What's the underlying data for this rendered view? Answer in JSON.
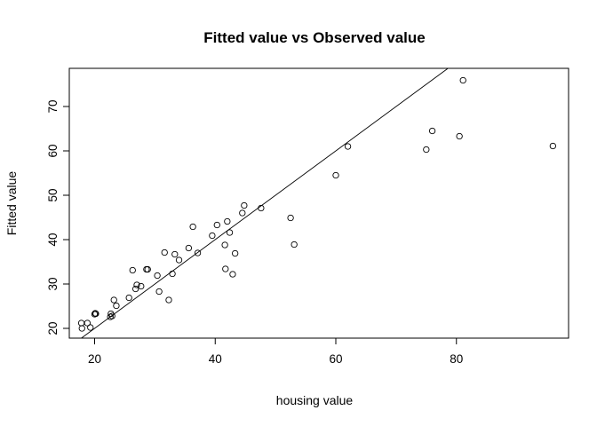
{
  "chart_data": {
    "type": "scatter",
    "title": "Fitted value vs Observed value",
    "xlabel": "housing value",
    "ylabel": "Fitted value",
    "xlim": [
      15.8,
      98.6
    ],
    "ylim": [
      17.8,
      78.6
    ],
    "xticks": [
      20,
      40,
      60,
      80
    ],
    "yticks": [
      20,
      30,
      40,
      50,
      60,
      70
    ],
    "grid": false,
    "reference_line": {
      "type": "abline",
      "intercept": 0,
      "slope": 1
    },
    "points": [
      {
        "x": 17.8,
        "y": 21.2
      },
      {
        "x": 17.9,
        "y": 20.0
      },
      {
        "x": 18.8,
        "y": 21.2
      },
      {
        "x": 19.3,
        "y": 20.2
      },
      {
        "x": 20.0,
        "y": 23.2
      },
      {
        "x": 20.1,
        "y": 23.4
      },
      {
        "x": 20.2,
        "y": 23.3
      },
      {
        "x": 22.6,
        "y": 22.6
      },
      {
        "x": 22.7,
        "y": 23.3
      },
      {
        "x": 22.9,
        "y": 22.8
      },
      {
        "x": 23.2,
        "y": 26.4
      },
      {
        "x": 23.6,
        "y": 25.1
      },
      {
        "x": 25.7,
        "y": 26.9
      },
      {
        "x": 26.3,
        "y": 33.1
      },
      {
        "x": 26.8,
        "y": 28.9
      },
      {
        "x": 27.0,
        "y": 29.8
      },
      {
        "x": 27.7,
        "y": 29.5
      },
      {
        "x": 28.6,
        "y": 33.3
      },
      {
        "x": 28.8,
        "y": 33.3
      },
      {
        "x": 30.4,
        "y": 31.9
      },
      {
        "x": 30.7,
        "y": 28.3
      },
      {
        "x": 31.6,
        "y": 37.1
      },
      {
        "x": 32.3,
        "y": 26.4
      },
      {
        "x": 32.9,
        "y": 32.3
      },
      {
        "x": 33.3,
        "y": 36.7
      },
      {
        "x": 34.0,
        "y": 35.4
      },
      {
        "x": 35.6,
        "y": 38.1
      },
      {
        "x": 36.3,
        "y": 42.9
      },
      {
        "x": 37.1,
        "y": 37.0
      },
      {
        "x": 39.5,
        "y": 40.9
      },
      {
        "x": 40.3,
        "y": 43.3
      },
      {
        "x": 41.6,
        "y": 38.8
      },
      {
        "x": 41.7,
        "y": 33.4
      },
      {
        "x": 42.0,
        "y": 44.1
      },
      {
        "x": 42.4,
        "y": 41.6
      },
      {
        "x": 42.9,
        "y": 32.2
      },
      {
        "x": 43.3,
        "y": 36.9
      },
      {
        "x": 44.5,
        "y": 46.0
      },
      {
        "x": 44.8,
        "y": 47.7
      },
      {
        "x": 47.6,
        "y": 47.1
      },
      {
        "x": 52.5,
        "y": 44.9
      },
      {
        "x": 53.1,
        "y": 38.9
      },
      {
        "x": 60.0,
        "y": 54.5
      },
      {
        "x": 62.0,
        "y": 61.0
      },
      {
        "x": 75.0,
        "y": 60.3
      },
      {
        "x": 76.0,
        "y": 64.5
      },
      {
        "x": 80.5,
        "y": 63.3
      },
      {
        "x": 81.1,
        "y": 75.9
      },
      {
        "x": 96.0,
        "y": 61.1
      }
    ]
  }
}
